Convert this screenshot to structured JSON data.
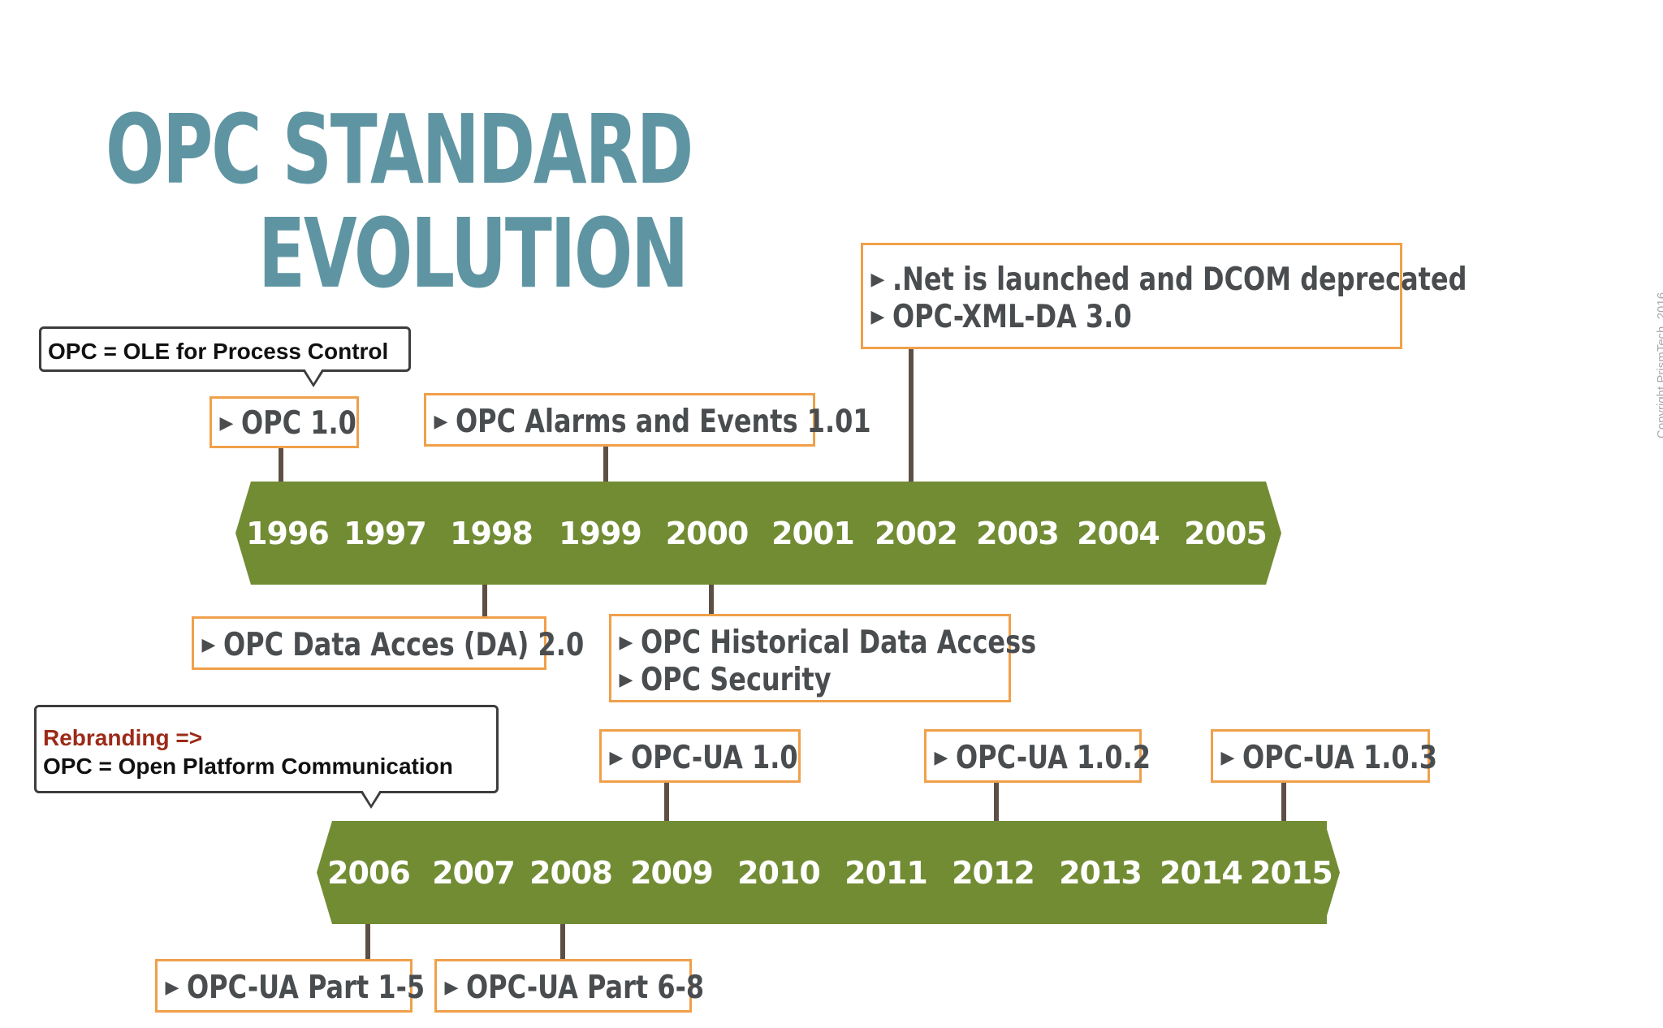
{
  "title": {
    "line1": "OPC STANDARD",
    "line2": "EVOLUTION"
  },
  "callouts": {
    "opc_definition": "OPC = OLE for Process Control",
    "rebranding_label": "Rebranding =>",
    "rebranding_text": "OPC = Open Platform Communication"
  },
  "timeline1": {
    "years": [
      "1996",
      "1997",
      "1998",
      "1999",
      "2000",
      "2001",
      "2002",
      "2003",
      "2004",
      "2005"
    ],
    "notes": {
      "opc10": "OPC 1.0",
      "alarms_events": "OPC Alarms and Events 1.01",
      "net_launch": ".Net is launched and DCOM deprecated",
      "opc_xml_da": "OPC-XML-DA 3.0",
      "data_access": "OPC Data Acces (DA) 2.0",
      "historical": "OPC Historical Data Access",
      "security": "OPC Security"
    }
  },
  "timeline2": {
    "years": [
      "2006",
      "2007",
      "2008",
      "2009",
      "2010",
      "2011",
      "2012",
      "2013",
      "2014",
      "2015"
    ],
    "notes": {
      "ua10": "OPC-UA 1.0",
      "ua102": "OPC-UA 1.0.2",
      "ua103": "OPC-UA 1.0.3",
      "ua_part15": "OPC-UA Part 1-5",
      "ua_part68": "OPC-UA Part 6-8"
    }
  },
  "copyright": "Copyright PrismTech, 2016",
  "colors": {
    "title": "#5f95a2",
    "timeline_fill": "#728c34",
    "note_border": "#f0a04a",
    "stem": "#5e4f45",
    "rebranding": "#9c2a18"
  }
}
